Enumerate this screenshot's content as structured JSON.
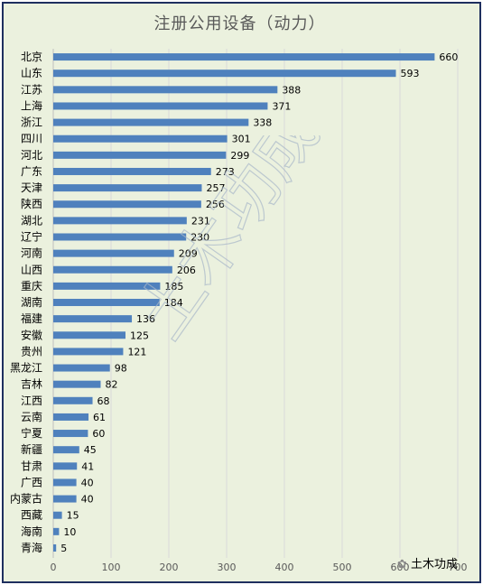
{
  "chart_data": {
    "type": "bar",
    "orientation": "horizontal",
    "title": "注册公用设备（动力）",
    "categories": [
      "北京",
      "山东",
      "江苏",
      "上海",
      "浙江",
      "四川",
      "河北",
      "广东",
      "天津",
      "陕西",
      "湖北",
      "辽宁",
      "河南",
      "山西",
      "重庆",
      "湖南",
      "福建",
      "安徽",
      "贵州",
      "黑龙江",
      "吉林",
      "江西",
      "云南",
      "宁夏",
      "新疆",
      "甘肃",
      "广西",
      "内蒙古",
      "西藏",
      "海南",
      "青海"
    ],
    "values": [
      660,
      593,
      388,
      371,
      338,
      301,
      299,
      273,
      257,
      256,
      231,
      230,
      209,
      206,
      185,
      184,
      136,
      125,
      121,
      98,
      82,
      68,
      61,
      60,
      45,
      41,
      40,
      40,
      15,
      10,
      5
    ],
    "xlim": [
      0,
      700
    ],
    "xticks": [
      0,
      100,
      200,
      300,
      400,
      500,
      600,
      700
    ],
    "grid": "vertical",
    "bar_color": "#4f81bd",
    "background": "#ebf1de"
  },
  "watermark": "土木功成",
  "logo_text": "土木功成"
}
